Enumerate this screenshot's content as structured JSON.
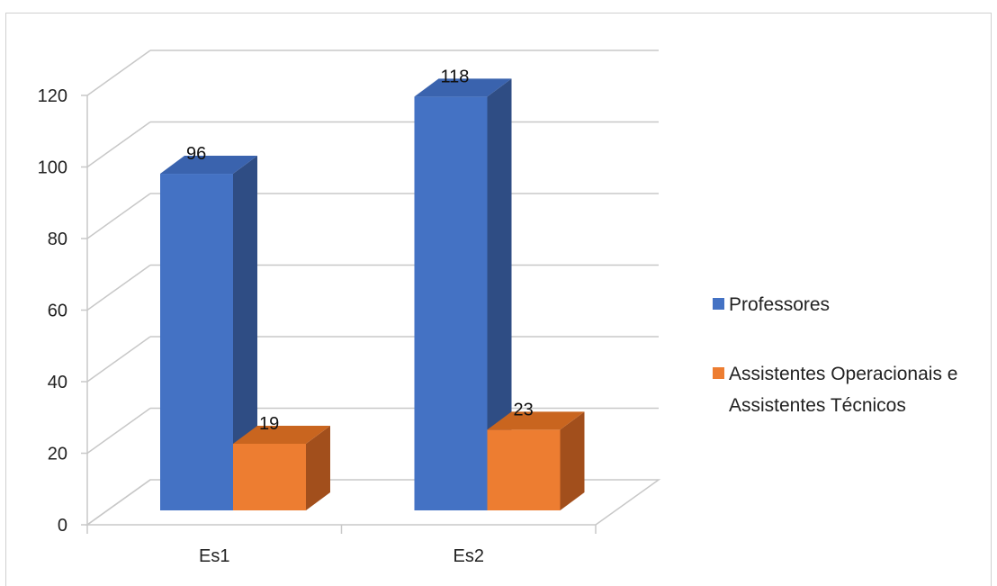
{
  "chart_data": {
    "type": "bar",
    "style": "3d-clustered-column",
    "categories": [
      "Es1",
      "Es2"
    ],
    "series": [
      {
        "name": "Professores",
        "values": [
          96,
          118
        ],
        "color": "#4472c4",
        "side_color": "#2f4d84",
        "top_color": "#3a63ae"
      },
      {
        "name": "Assistentes Operacionais e Assistentes Técnicos",
        "values": [
          19,
          23
        ],
        "color": "#ed7d31",
        "side_color": "#a24f1c",
        "top_color": "#c9651f"
      }
    ],
    "legend_lines": [
      [
        "Professores"
      ],
      [
        "Assistentes Operacionais e",
        "Assistentes Técnicos"
      ]
    ],
    "ylim": [
      0,
      120
    ],
    "yticks": [
      0,
      20,
      40,
      60,
      80,
      100,
      120
    ],
    "grid": true,
    "legend": "right",
    "data_labels": true
  }
}
